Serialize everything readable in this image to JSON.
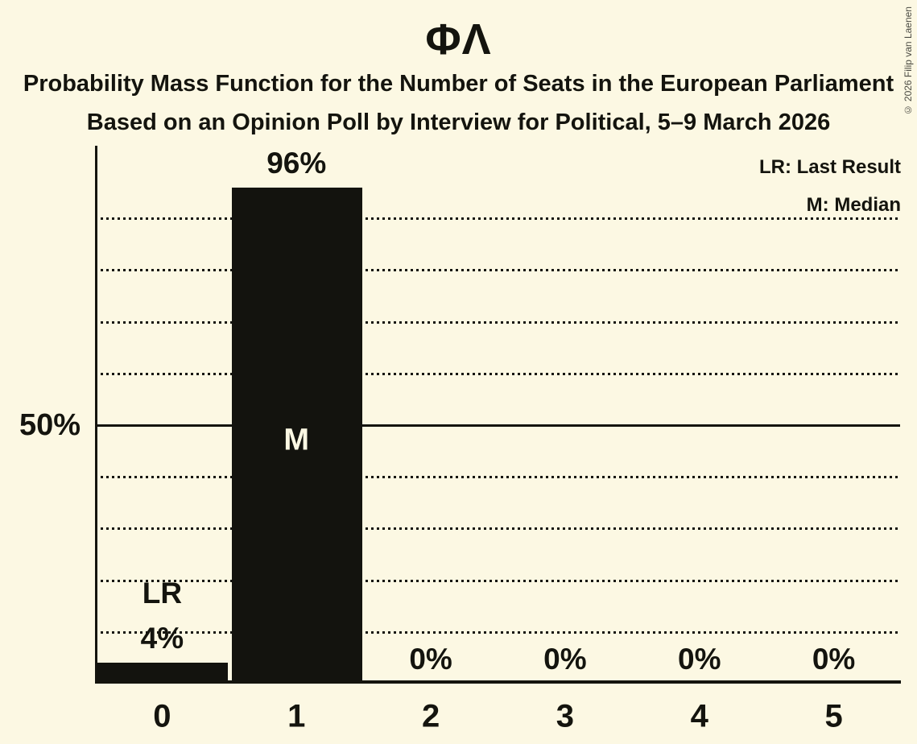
{
  "page": {
    "copyright": "© 2026 Filip van Laenen"
  },
  "header": {
    "title": "ΦΛ",
    "subtitle1": "Probability Mass Function for the Number of Seats in the European Parliament",
    "subtitle2": "Based on an Opinion Poll by Interview for Political, 5–9 March 2026"
  },
  "chart_data": {
    "type": "bar",
    "title": "ΦΛ",
    "subtitle": "Probability Mass Function for the Number of Seats in the European Parliament",
    "sub_subtitle": "Based on an Opinion Poll by Interview for Political, 5–9 March 2026",
    "categories": [
      "0",
      "1",
      "2",
      "3",
      "4",
      "5"
    ],
    "values": [
      4,
      96,
      0,
      0,
      0,
      0
    ],
    "value_labels": [
      "4%",
      "96%",
      "0%",
      "0%",
      "0%",
      "0%"
    ],
    "annotations": {
      "last_result_bar_index": 0,
      "last_result_label": "LR",
      "median_bar_index": 1,
      "median_label": "M"
    },
    "legend": [
      "LR: Last Result",
      "M: Median"
    ],
    "legend_position": "top-right",
    "y_axis_tick_label": "50%",
    "ylim": [
      0,
      100
    ],
    "grid_on": true,
    "gridline_percents": [
      10,
      20,
      30,
      40,
      60,
      70,
      80,
      90
    ],
    "solid_line_percent": 50,
    "colors": {
      "background": "#FCF8E3",
      "bar": "#13130E",
      "text": "#14140E",
      "inside_bar_label": "#FCF8E3",
      "copyright": "#4A4A42"
    }
  }
}
